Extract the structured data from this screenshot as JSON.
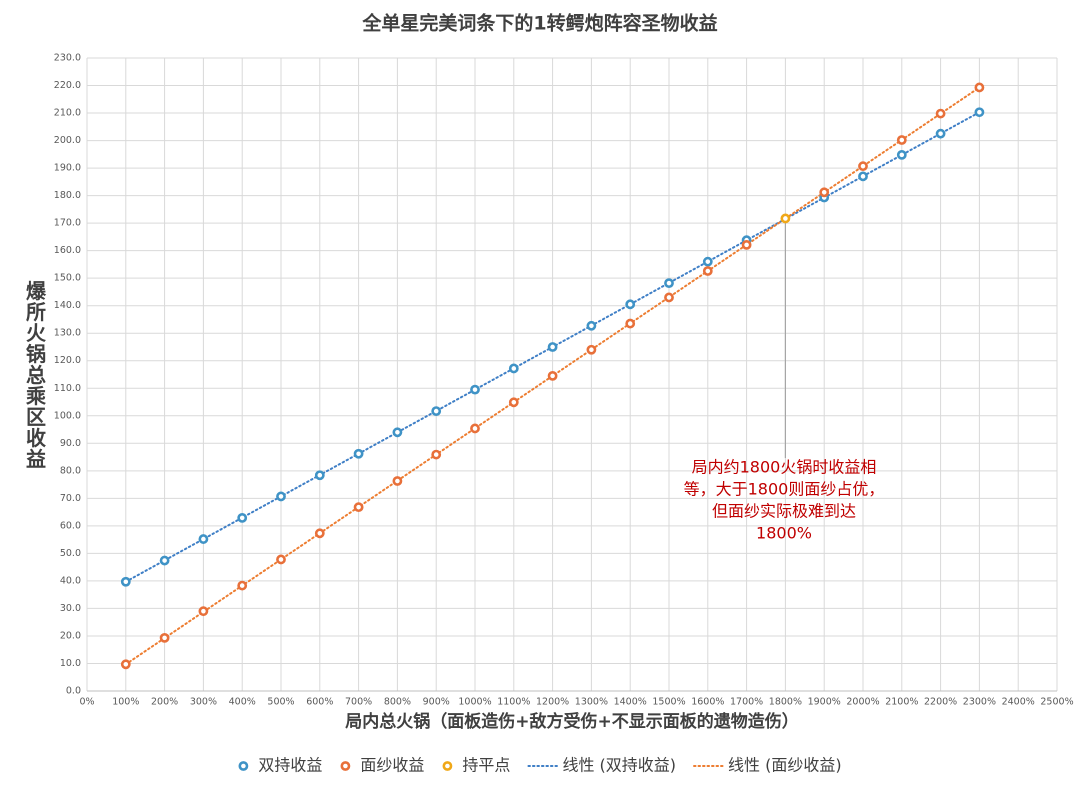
{
  "chart_data": {
    "type": "scatter",
    "title": "全单星完美词条下的1转鳄炮阵容圣物收益",
    "x_label": "局内总火锅（面板造伤+敌方受伤+不显示面板的遗物造伤）",
    "y_label": "爆所火锅总乘区收益",
    "xlim": [
      0,
      2500
    ],
    "xticks": [
      {
        "value": 0,
        "label": "0%"
      },
      {
        "value": 100,
        "label": "100%"
      },
      {
        "value": 200,
        "label": "200%"
      },
      {
        "value": 300,
        "label": "300%"
      },
      {
        "value": 400,
        "label": "400%"
      },
      {
        "value": 500,
        "label": "500%"
      },
      {
        "value": 600,
        "label": "600%"
      },
      {
        "value": 700,
        "label": "700%"
      },
      {
        "value": 800,
        "label": "800%"
      },
      {
        "value": 900,
        "label": "900%"
      },
      {
        "value": 1000,
        "label": "1000%"
      },
      {
        "value": 1100,
        "label": "1100%"
      },
      {
        "value": 1200,
        "label": "1200%"
      },
      {
        "value": 1300,
        "label": "1300%"
      },
      {
        "value": 1400,
        "label": "1400%"
      },
      {
        "value": 1500,
        "label": "1500%"
      },
      {
        "value": 1600,
        "label": "1600%"
      },
      {
        "value": 1700,
        "label": "1700%"
      },
      {
        "value": 1800,
        "label": "1800%"
      },
      {
        "value": 1900,
        "label": "1900%"
      },
      {
        "value": 2000,
        "label": "2000%"
      },
      {
        "value": 2100,
        "label": "2100%"
      },
      {
        "value": 2200,
        "label": "2200%"
      },
      {
        "value": 2300,
        "label": "2300%"
      },
      {
        "value": 2400,
        "label": "2400%"
      },
      {
        "value": 2500,
        "label": "2500%"
      }
    ],
    "ylim": [
      0,
      230
    ],
    "yticks": [
      {
        "value": 0,
        "label": "0.0"
      },
      {
        "value": 10,
        "label": "10.0"
      },
      {
        "value": 20,
        "label": "20.0"
      },
      {
        "value": 30,
        "label": "30.0"
      },
      {
        "value": 40,
        "label": "40.0"
      },
      {
        "value": 50,
        "label": "50.0"
      },
      {
        "value": 60,
        "label": "60.0"
      },
      {
        "value": 70,
        "label": "70.0"
      },
      {
        "value": 80,
        "label": "80.0"
      },
      {
        "value": 90,
        "label": "90.0"
      },
      {
        "value": 100,
        "label": "100.0"
      },
      {
        "value": 110,
        "label": "110.0"
      },
      {
        "value": 120,
        "label": "120.0"
      },
      {
        "value": 130,
        "label": "130.0"
      },
      {
        "value": 140,
        "label": "140.0"
      },
      {
        "value": 150,
        "label": "150.0"
      },
      {
        "value": 160,
        "label": "160.0"
      },
      {
        "value": 170,
        "label": "170.0"
      },
      {
        "value": 180,
        "label": "180.0"
      },
      {
        "value": 190,
        "label": "190.0"
      },
      {
        "value": 200,
        "label": "200.0"
      },
      {
        "value": 210,
        "label": "210.0"
      },
      {
        "value": 220,
        "label": "220.0"
      },
      {
        "value": 230,
        "label": "230.0"
      }
    ],
    "grid": true,
    "series": [
      {
        "name": "双持收益",
        "type": "scatter",
        "color": "#3f93c6",
        "x": [
          100,
          200,
          300,
          400,
          500,
          600,
          700,
          800,
          900,
          1000,
          1100,
          1200,
          1300,
          1400,
          1500,
          1600,
          1700,
          1900,
          2000,
          2100,
          2200,
          2300
        ],
        "values": [
          39.7,
          47.4,
          55.2,
          62.9,
          70.7,
          78.4,
          86.2,
          94.0,
          101.7,
          109.5,
          117.2,
          125.0,
          132.7,
          140.5,
          148.2,
          156.0,
          163.8,
          179.3,
          187.0,
          194.8,
          202.5,
          210.3
        ]
      },
      {
        "name": "面纱收益",
        "type": "scatter",
        "color": "#e8703a",
        "x": [
          100,
          200,
          300,
          400,
          500,
          600,
          700,
          800,
          900,
          1000,
          1100,
          1200,
          1300,
          1400,
          1500,
          1600,
          1700,
          1900,
          2000,
          2100,
          2200,
          2300
        ],
        "values": [
          9.7,
          19.3,
          29.0,
          38.3,
          47.8,
          57.3,
          66.8,
          76.3,
          85.9,
          95.4,
          104.9,
          114.5,
          124.0,
          133.5,
          143.0,
          152.6,
          162.1,
          181.2,
          190.7,
          200.2,
          209.8,
          219.3
        ]
      },
      {
        "name": "持平点",
        "type": "scatter",
        "color": "#f0a818",
        "x": [
          1800
        ],
        "values": [
          171.7
        ]
      },
      {
        "name": "线性 (双持收益)",
        "type": "line",
        "color": "#3f7fc6",
        "x": [
          100,
          2300
        ],
        "values": [
          39.7,
          210.3
        ]
      },
      {
        "name": "线性 (面纱收益)",
        "type": "line",
        "color": "#ed7d31",
        "x": [
          100,
          2300
        ],
        "values": [
          9.7,
          219.3
        ]
      }
    ],
    "annotation": {
      "lines": [
        "局内约1800火锅时收益相",
        "等，大于1800则面纱占优，",
        "但面纱实际极难到达",
        "1800%"
      ],
      "color": "#c00000"
    }
  }
}
